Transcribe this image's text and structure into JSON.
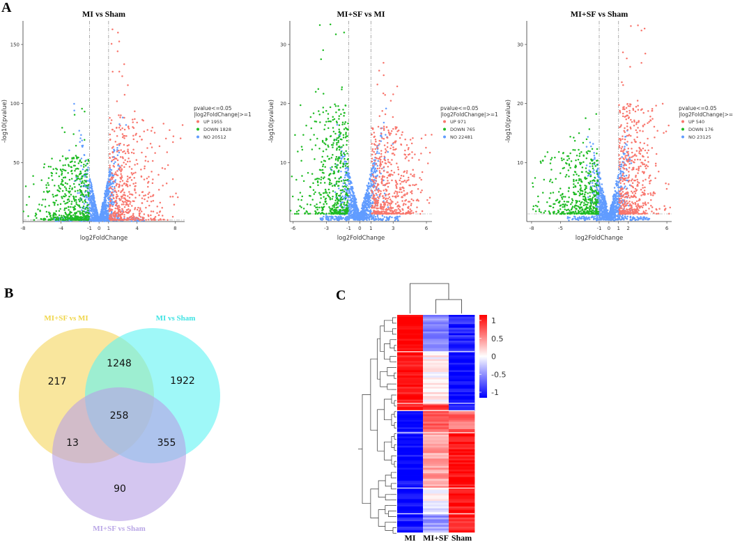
{
  "panels": {
    "a": "A",
    "b": "B",
    "c": "C"
  },
  "chart_data": [
    {
      "type": "scatter",
      "subtype": "volcano",
      "title": "MI vs Sham",
      "xlabel": "log2FoldChange",
      "ylabel": "-log10(pvalue)",
      "xlim": [
        -8,
        9
      ],
      "ylim": [
        0,
        170
      ],
      "xticks": [
        -8,
        -4,
        -1,
        0,
        1,
        4,
        8
      ],
      "yticks": [
        50,
        100,
        150
      ],
      "fc_threshold": 1,
      "p_threshold_line": 1.3,
      "legend_title": [
        "pvalue<=0.05",
        "|log2FoldChange|>=1"
      ],
      "legend": [
        {
          "label": "UP 1955",
          "color": "#f8766d"
        },
        {
          "label": "DOWN 1828",
          "color": "#1fbb24"
        },
        {
          "label": "NO 20512",
          "color": "#619cff"
        }
      ],
      "spread": {
        "xmin": -7.6,
        "xmax": 8.4,
        "peak_up": 163,
        "peak_down": 98
      }
    },
    {
      "type": "scatter",
      "subtype": "volcano",
      "title": "MI+SF vs MI",
      "xlabel": "log2FoldChange",
      "ylabel": "-log10(pvalue)",
      "xlim": [
        -6.3,
        6.5
      ],
      "ylim": [
        0,
        34
      ],
      "xticks": [
        -6,
        -3,
        -1,
        0,
        1,
        3,
        6
      ],
      "yticks": [
        10,
        20,
        30
      ],
      "fc_threshold": 1,
      "p_threshold_line": 1.3,
      "legend_title": [
        "pvalue<=0.05",
        "|log2FoldChange|>=1"
      ],
      "legend": [
        {
          "label": "UP 971",
          "color": "#f8766d"
        },
        {
          "label": "DOWN 765",
          "color": "#1fbb24"
        },
        {
          "label": "NO 22481",
          "color": "#619cff"
        }
      ],
      "spread": {
        "xmin": -5.9,
        "xmax": 6.1,
        "peak_up": 27,
        "peak_down": 34
      }
    },
    {
      "type": "scatter",
      "subtype": "volcano",
      "title": "MI+SF vs Sham",
      "xlabel": "log2FoldChange",
      "ylabel": "-log10(pvalue)",
      "xlim": [
        -8.5,
        6.5
      ],
      "ylim": [
        0,
        34
      ],
      "xticks": [
        -8,
        -5,
        -1,
        0,
        1,
        2,
        6
      ],
      "yticks": [
        10,
        20,
        30
      ],
      "fc_threshold": 1,
      "p_threshold_line": 1.3,
      "legend_title": [
        "pvalue<=0.05",
        "|log2FoldChange|>=1"
      ],
      "legend": [
        {
          "label": "UP 540",
          "color": "#f8766d"
        },
        {
          "label": "DOWN 176",
          "color": "#1fbb24"
        },
        {
          "label": "NO 23125",
          "color": "#619cff"
        }
      ],
      "spread": {
        "xmin": -8.2,
        "xmax": 6.1,
        "peak_up": 34,
        "peak_down": 20
      }
    },
    {
      "type": "venn",
      "sets": [
        {
          "name": "MI+SF vs MI",
          "color": "#f5d65b",
          "label_color": "#f0d64a"
        },
        {
          "name": "MI vs Sham",
          "color": "#5ff3f3",
          "label_color": "#3fe3e3"
        },
        {
          "name": "MI+SF vs Sham",
          "color": "#b8a0e6",
          "label_color": "#b9a6e6"
        }
      ],
      "regions": [
        {
          "sets": [
            "MI+SF vs MI"
          ],
          "value": 217
        },
        {
          "sets": [
            "MI vs Sham"
          ],
          "value": 1922
        },
        {
          "sets": [
            "MI+SF vs Sham"
          ],
          "value": 90
        },
        {
          "sets": [
            "MI+SF vs MI",
            "MI vs Sham"
          ],
          "value": 1248
        },
        {
          "sets": [
            "MI+SF vs MI",
            "MI+SF vs Sham"
          ],
          "value": 13
        },
        {
          "sets": [
            "MI vs Sham",
            "MI+SF vs Sham"
          ],
          "value": 355
        },
        {
          "sets": [
            "MI+SF vs MI",
            "MI vs Sham",
            "MI+SF vs Sham"
          ],
          "value": 258
        }
      ]
    },
    {
      "type": "heatmap",
      "columns": [
        "MI",
        "MI+SF",
        "Sham"
      ],
      "color_scale": {
        "min": -1,
        "max": 1,
        "ticks": [
          "1",
          "0.5",
          "0",
          "-0.5",
          "-1"
        ]
      },
      "blocks": [
        {
          "rows": 20,
          "values": [
            1.0,
            -0.45,
            -0.85
          ]
        },
        {
          "rows": 28,
          "values": [
            0.95,
            0.05,
            -1.0
          ]
        },
        {
          "rows": 4,
          "values": [
            0.8,
            0.7,
            -0.95
          ]
        },
        {
          "rows": 12,
          "values": [
            -1.0,
            0.65,
            0.6
          ]
        },
        {
          "rows": 30,
          "values": [
            -1.0,
            0.35,
            0.95
          ]
        },
        {
          "rows": 14,
          "values": [
            -0.95,
            -0.05,
            0.95
          ]
        },
        {
          "rows": 10,
          "values": [
            -0.9,
            -0.4,
            0.9
          ]
        }
      ]
    }
  ]
}
